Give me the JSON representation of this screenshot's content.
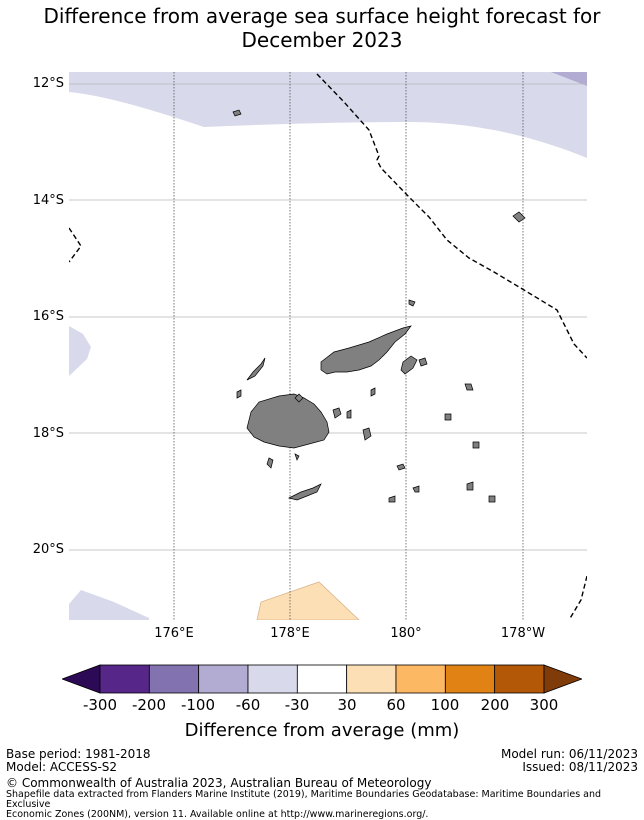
{
  "title_line1": "Difference from average sea surface height forecast for",
  "title_line2": "December 2023",
  "map": {
    "lat_labels": [
      "12°S",
      "14°S",
      "16°S",
      "18°S",
      "20°S"
    ],
    "lon_labels": [
      "176°E",
      "178°E",
      "180°",
      "178°W"
    ],
    "ocean_color": "#ffffff",
    "land_color": "#808080",
    "boundary_style": "dashed"
  },
  "colorbar": {
    "ticks": [
      "-300",
      "-200",
      "-100",
      "-60",
      "-30",
      "30",
      "60",
      "100",
      "200",
      "300"
    ],
    "colors": [
      "#2d0a55",
      "#562788",
      "#8273b0",
      "#b2abd2",
      "#d8d9ea",
      "#ffffff",
      "#fddfb6",
      "#fdb863",
      "#e08214",
      "#b35806",
      "#7f3b08"
    ],
    "label": "Difference from average (mm)"
  },
  "footer": {
    "base_period": "Base period: 1981-2018",
    "model": "Model: ACCESS-S2",
    "model_run": "Model run: 06/11/2023",
    "issued": "Issued: 08/11/2023",
    "copyright": "© Commonwealth of Australia 2023, Australian Bureau of Meteorology",
    "shapefile_line1": "Shapefile data extracted from Flanders Marine Institute (2019), Maritime Boundaries Geodatabase: Maritime Boundaries and Exclusive",
    "shapefile_line2": "Economic Zones (200NM), version 11. Available online at http://www.marineregions.org/."
  }
}
